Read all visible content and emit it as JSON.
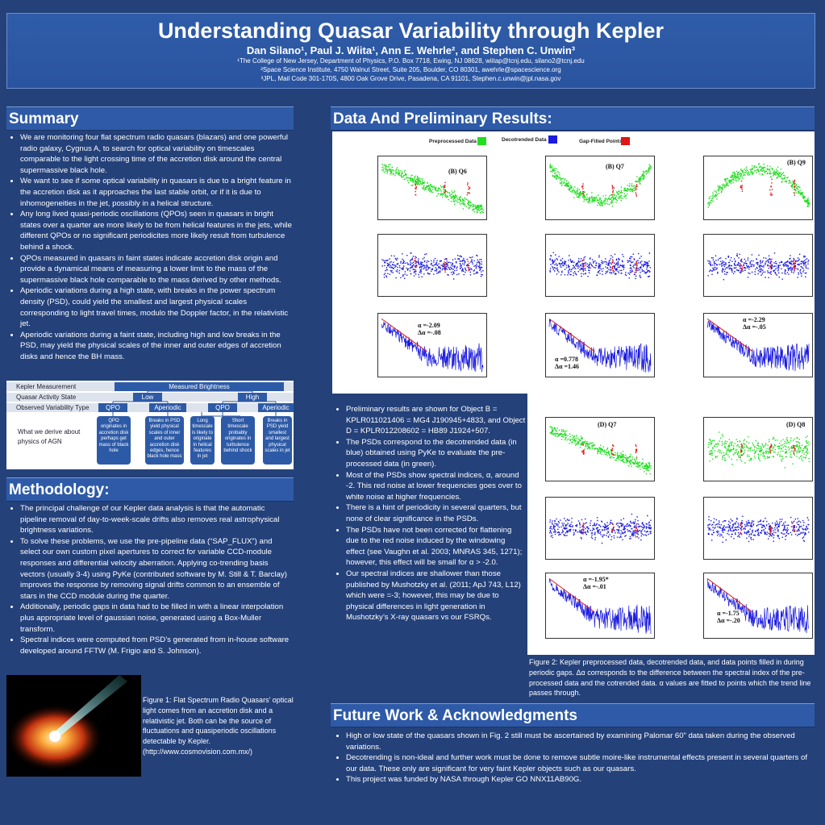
{
  "header": {
    "title": "Understanding Quasar Variability through Kepler",
    "authors": "Dan Silano¹, Paul J. Wiita¹, Ann E. Wehrle², and Stephen C. Unwin³",
    "affiliations": [
      "¹The College of New Jersey, Department of Physics, P.O. Box 7718, Ewing, NJ 08628, wiitap@tcnj.edu, silano2@tcnj.edu",
      "²Space Science Institute, 4750 Walnut Street, Suite 205, Boulder, CO 80301, awehrle@spacescience.org",
      "³JPL, Mail Code 301-170S, 4800 Oak Grove Drive, Pasadena, CA 91101, Stephen.c.unwin@jpl.nasa.gov"
    ]
  },
  "summary": {
    "title": "Summary",
    "bullets": [
      "We are monitoring four flat spectrum radio quasars (blazars) and one powerful radio galaxy, Cygnus A, to search for optical variability on timescales comparable to the light crossing time of the accretion disk around the central supermassive black hole.",
      "We want to see if some optical variability in quasars is due to a bright feature in the accretion disk as it approaches the last stable orbit, or if it is due to inhomogeneities in the jet, possibly in a helical structure.",
      "Any long lived quasi-periodic oscillations (QPOs) seen in quasars in bright states over a quarter are more likely to be from helical features in the jets, while different QPOs or no significant periodicites more likely result from turbulence behind a shock.",
      "QPOs measured in quasars in faint states indicate accretion disk origin and provide a dynamical means of measuring a lower limit to the mass of the supermassive black hole comparable to the mass derived by other methods.",
      "Aperiodic variations during a high state, with breaks in the power spectrum density (PSD), could yield the smallest and largest physical scales corresponding to light travel times, modulo the Doppler factor, in the relativistic jet.",
      "Aperiodic variations during a faint state, including high and low breaks in the PSD, may yield the physical scales of the inner and outer edges of accretion disks and hence the BH mass."
    ]
  },
  "table": {
    "rows": [
      "Kepler Measurement",
      "Quasar Activity State",
      "Observed Variability Type"
    ],
    "measured": "Measured Brightness",
    "low": "Low",
    "high": "High",
    "qpo1": "QPO",
    "aper1": "Aperiodic",
    "qpo2": "QPO",
    "aper2": "Aperiodic",
    "derive": "What we derive about physics of AGN",
    "boxes": [
      "QPO originates in accretion disk perhaps get mass of black hole",
      "Breaks in PSD yield physical scales of inner and outer accretion disk edges, hence black hole mass",
      "Long timescale is likely to originate in helical features in jet",
      "Short timescale probably originates in turbulence behind shock",
      "Breaks in PSD yield smallest and largest physical scales in jet"
    ]
  },
  "methodology": {
    "title": "Methodology:",
    "bullets": [
      "The principal challenge of our Kepler data analysis is that the automatic pipeline removal of day-to-week-scale drifts also removes  real astrophysical brightness variations.",
      "To solve these problems, we use the pre-pipeline data (“SAP_FLUX”) and select our own custom pixel apertures to correct for variable CCD-module responses and differential velocity aberration. Applying co-trending basis vectors (usually 3-4) using PyKe (contributed software by M. Still & T. Barclay) improves the response by removing signal drifts common to an ensemble of stars in the CCD module during the quarter.",
      "Additionally, periodic gaps in data had to be filled in with a linear interpolation plus appropriate level of gaussian noise, generated using a Box-Muller transform.",
      "Spectral indices were computed from PSD’s generated from in-house software developed around FFTW (M. Frigio and S. Johnson)."
    ]
  },
  "figure1": {
    "caption": "Figure 1:  Flat Spectrum Radio Quasars’ optical light comes from an accretion disk and a relativistic jet. Both can be the source of fluctuations and quasiperiodic oscillations detectable by Kepler. (http://www.cosmovision.com.mx/)"
  },
  "results": {
    "title": "Data And Preliminary Results:",
    "legend": [
      "Preprocessed Data",
      "Decotrended Data",
      "Gap-Filled Points"
    ],
    "bullets": [
      "Preliminary results are shown for Object B = KPLR011021406 = MG4 J190945+4833, and Object D = KPLR012208602 = HB89 J1924+507.",
      "The PSDs correspond to the decotrended data (in blue) obtained using PyKe to evaluate the pre-processed data (in green).",
      "Most of the PSDs show spectral indices, α, around -2.  This red noise at lower frequencies goes over to white noise at higher frequencies.",
      "There is a hint of periodicity in several quarters, but none of clear significance in the PSDs.",
      "The  PSDs have not been corrected for flattening due to the red noise induced by the windowing effect (see Vaughn et al. 2003; MNRAS 345, 1271); however, this effect will be small for α > -2.0.",
      "Our spectral indices are shallower than those published by Mushotzky et al. (2011; ApJ 743, L12) which were =-3; however, this may be due to physical differences in light generation in Mushotzky’s X-ray quasars vs our FSRQs."
    ],
    "plot_labels": {
      "bq6": "(B) Q6",
      "bq7": "(B) Q7",
      "bq9": "(B) Q9",
      "dq7": "(D) Q7",
      "dq8": "(D) Q8"
    },
    "alphas": {
      "bq6": [
        "α =-2.09",
        "Δα =-.08"
      ],
      "bq7": [
        "α =0.778",
        "Δα =1.46"
      ],
      "bq9": [
        "α =-2.29",
        "Δα =-.05"
      ],
      "dq7": [
        "α =-1.95*",
        "Δα =-.01"
      ],
      "dq8": [
        "α =-1.75",
        "Δα =-.20"
      ]
    },
    "caption": "Figure 2: Kepler preprocessed data, decotrended data, and data points filled in during periodic gaps. Δα corresponds to the difference between the spectral index of the pre-processed data and the cotrended data. α values are fitted to points which the trend line passes through."
  },
  "future": {
    "title": "Future Work & Acknowledgments",
    "bullets": [
      "High or low state of the quasars shown in Fig. 2 still must be ascertained by examining Palomar 60” data taken during the observed variations.",
      "Decotrending is non-ideal and further work must be done to remove subtle moire-like instrumental effects present in several quarters of our data.  These only are significant for very faint Kepler objects such as our quasars.",
      "This project was funded by NASA through Kepler GO NNX11AB90G."
    ]
  },
  "colors": {
    "background": "#24417a",
    "panel": "#2e5aa7",
    "preprocessed": "#22dd22",
    "decotrended": "#1a1ae0",
    "gapfilled": "#e01515"
  }
}
